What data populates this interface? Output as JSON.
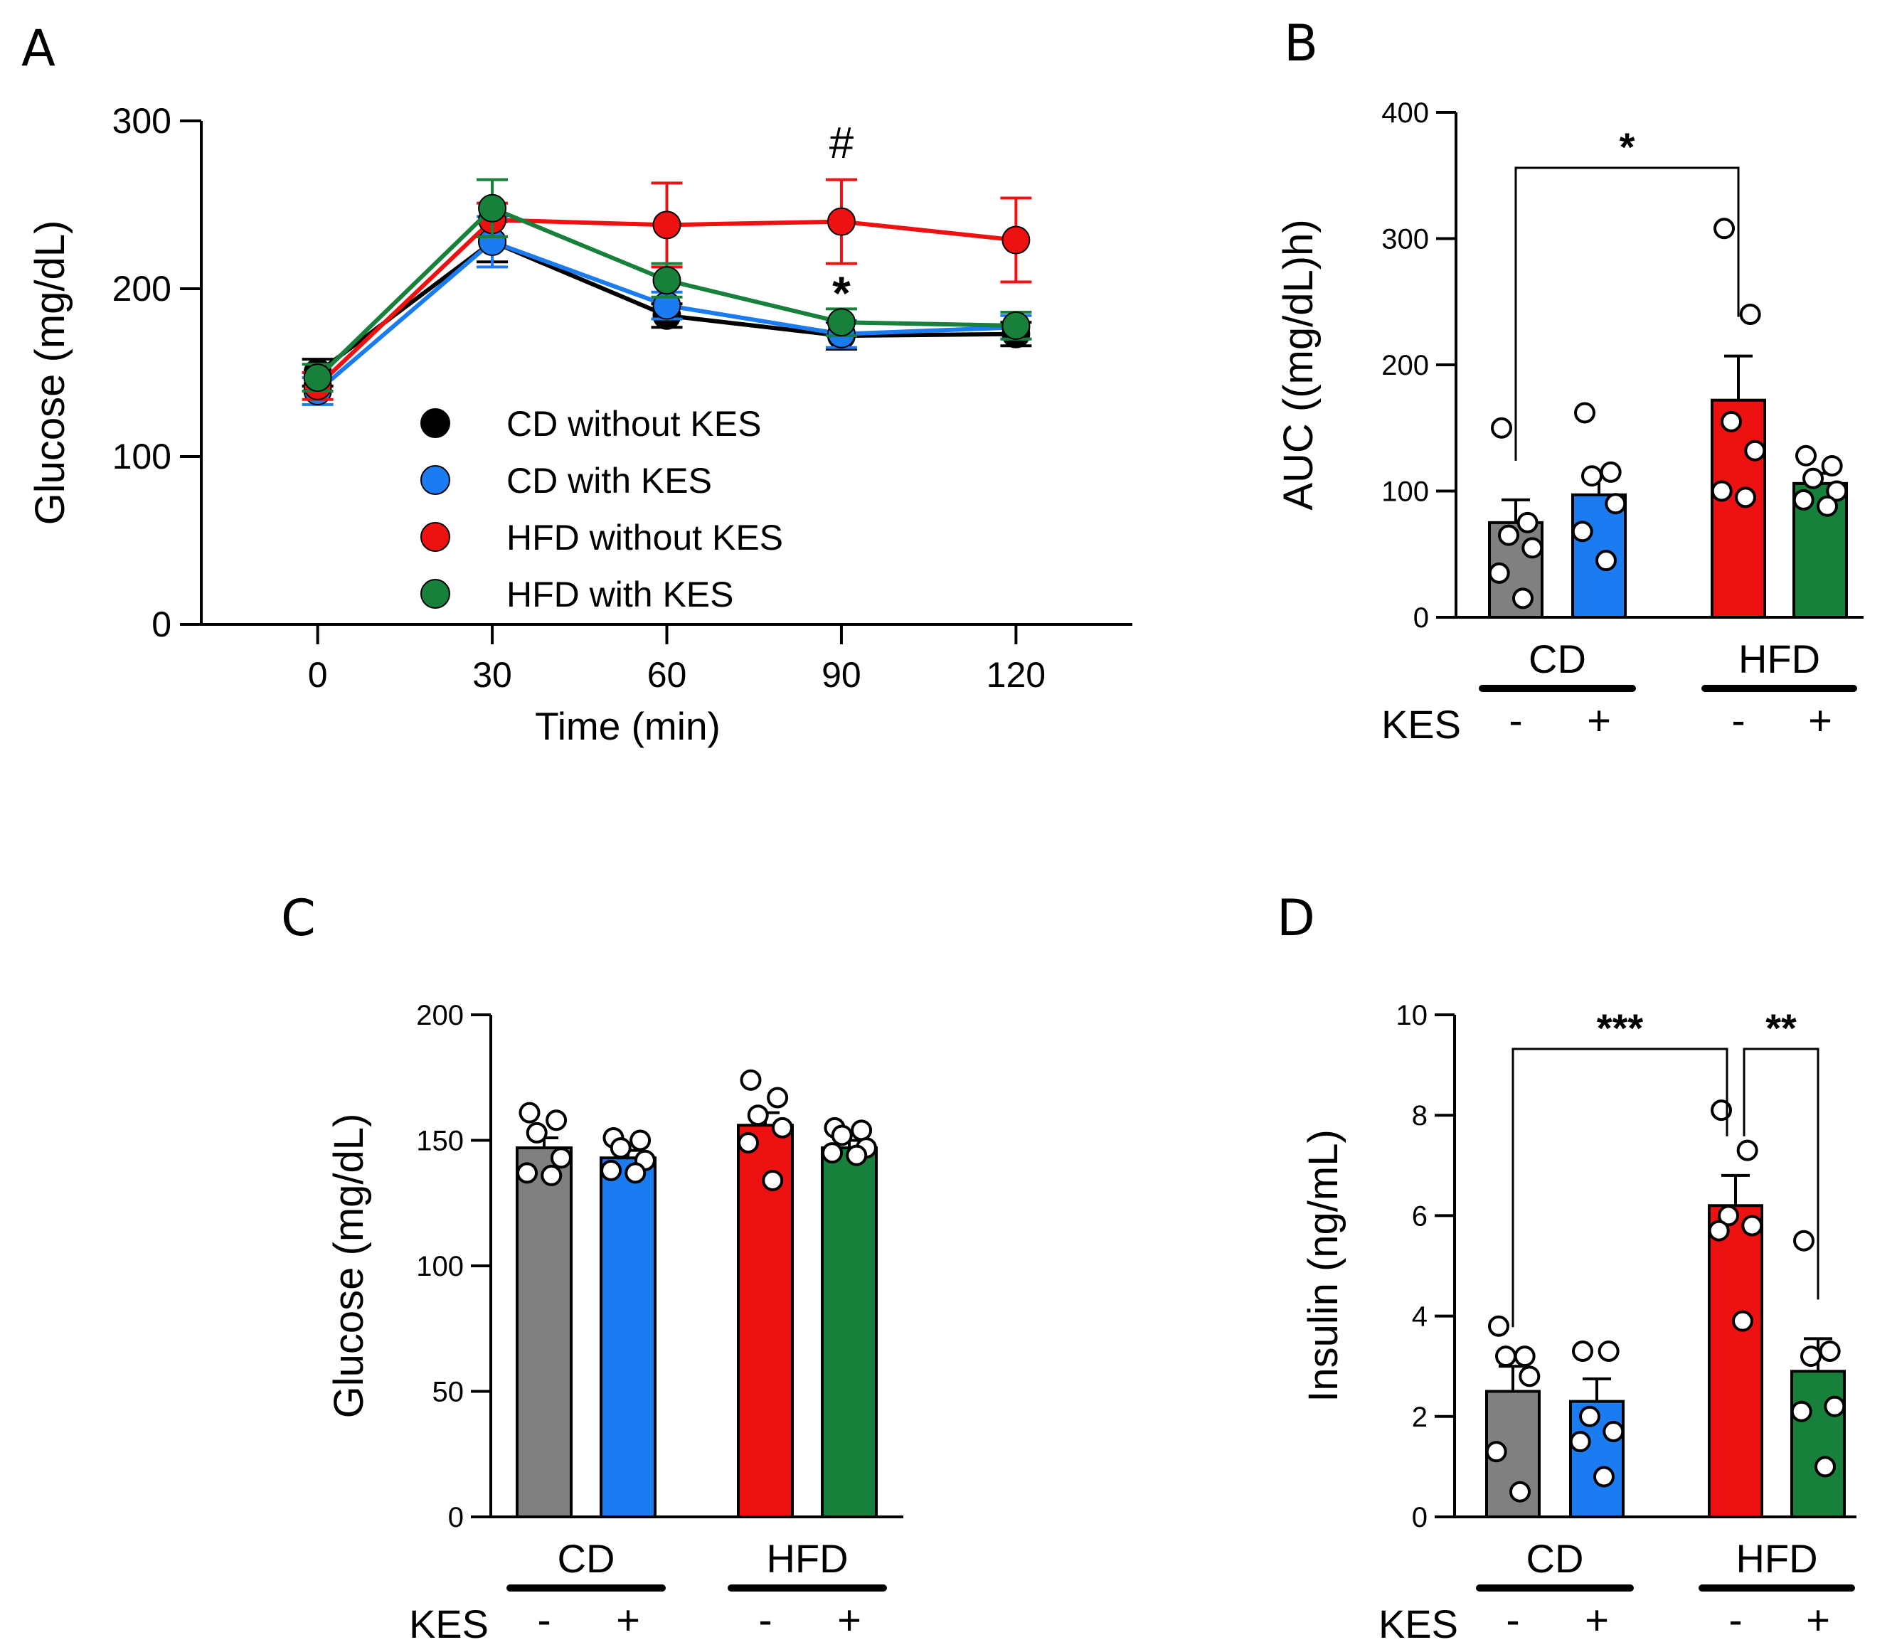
{
  "panels": {
    "A": "A",
    "B": "B",
    "C": "C",
    "D": "D"
  },
  "colors": {
    "CD_without_KES": "#000000",
    "CD_with_KES": "#1a7cf0",
    "HFD_without_KES": "#ee1111",
    "HFD_with_KES": "#17803a",
    "bar_CD_minus": "#808080",
    "bar_CD_plus": "#1a7cf0",
    "bar_HFD_minus": "#ee1111",
    "bar_HFD_plus": "#17803a"
  },
  "chart_data": [
    {
      "id": "A",
      "type": "line",
      "ylabel": "Glucose (mg/dL)",
      "xlabel": "Time (min)",
      "ylim": [
        0,
        300
      ],
      "yticks": [
        0,
        100,
        200,
        300
      ],
      "x": [
        0,
        30,
        60,
        90,
        120
      ],
      "xlim": [
        -20,
        140
      ],
      "series": [
        {
          "name": "CD without KES",
          "color": "#000000",
          "values": [
            150,
            228,
            184,
            172,
            173
          ],
          "err": [
            8,
            12,
            7,
            8,
            7
          ]
        },
        {
          "name": "CD with KES",
          "color": "#1a7cf0",
          "values": [
            139,
            228,
            190,
            173,
            177
          ],
          "err": [
            8,
            15,
            8,
            8,
            7
          ]
        },
        {
          "name": "HFD without KES",
          "color": "#ee1111",
          "values": [
            142,
            241,
            238,
            240,
            229
          ],
          "err": [
            8,
            10,
            25,
            25,
            25
          ]
        },
        {
          "name": "HFD with KES",
          "color": "#17803a",
          "values": [
            147,
            248,
            205,
            180,
            178
          ],
          "err": [
            8,
            17,
            10,
            8,
            8
          ]
        }
      ],
      "annotations": [
        {
          "text": "#",
          "x": 90
        },
        {
          "text": "*",
          "x": 90
        }
      ]
    },
    {
      "id": "B",
      "type": "bar",
      "ylabel": "AUC ((mg/dL)h)",
      "ylim": [
        0,
        400
      ],
      "yticks": [
        0,
        100,
        200,
        300,
        400
      ],
      "groups": [
        "CD",
        "HFD"
      ],
      "factor": "KES",
      "signs": [
        "-",
        "+",
        "-",
        "+"
      ],
      "bars": [
        {
          "label": "CD -",
          "value": 75,
          "err": 18,
          "points": [
            150,
            75,
            65,
            55,
            35,
            15
          ]
        },
        {
          "label": "CD +",
          "value": 97,
          "err": 17,
          "points": [
            162,
            115,
            112,
            90,
            68,
            45
          ]
        },
        {
          "label": "HFD -",
          "value": 172,
          "err": 35,
          "points": [
            308,
            240,
            155,
            132,
            100,
            95
          ]
        },
        {
          "label": "HFD +",
          "value": 106,
          "err": 8,
          "points": [
            128,
            120,
            110,
            100,
            93,
            88
          ]
        }
      ],
      "significance": [
        {
          "text": "*",
          "from": 0,
          "to": 2
        }
      ]
    },
    {
      "id": "C",
      "type": "bar",
      "ylabel": "Glucose (mg/dL)",
      "ylim": [
        0,
        200
      ],
      "yticks": [
        0,
        50,
        100,
        150,
        200
      ],
      "groups": [
        "CD",
        "HFD"
      ],
      "factor": "KES",
      "signs": [
        "-",
        "+",
        "-",
        "+"
      ],
      "bars": [
        {
          "label": "CD -",
          "value": 147,
          "err": 4,
          "points": [
            161,
            158,
            153,
            143,
            137,
            136
          ]
        },
        {
          "label": "CD +",
          "value": 143,
          "err": 3,
          "points": [
            151,
            150,
            147,
            142,
            138,
            137
          ]
        },
        {
          "label": "HFD -",
          "value": 156,
          "err": 5,
          "points": [
            174,
            167,
            160,
            155,
            149,
            134
          ]
        },
        {
          "label": "HFD +",
          "value": 147,
          "err": 3,
          "points": [
            155,
            154,
            152,
            147,
            145,
            144
          ]
        }
      ],
      "significance": []
    },
    {
      "id": "D",
      "type": "bar",
      "ylabel": "Insulin (ng/mL)",
      "ylim": [
        0,
        10
      ],
      "yticks": [
        0,
        2,
        4,
        6,
        8,
        10
      ],
      "groups": [
        "CD",
        "HFD"
      ],
      "factor": "KES",
      "signs": [
        "-",
        "+",
        "-",
        "+"
      ],
      "bars": [
        {
          "label": "CD -",
          "value": 2.5,
          "err": 0.5,
          "points": [
            3.8,
            3.2,
            3.2,
            2.8,
            1.3,
            0.5
          ]
        },
        {
          "label": "CD +",
          "value": 2.3,
          "err": 0.45,
          "points": [
            3.3,
            3.3,
            2.0,
            1.7,
            1.5,
            0.8
          ]
        },
        {
          "label": "HFD -",
          "value": 6.2,
          "err": 0.6,
          "points": [
            8.1,
            7.3,
            6.0,
            5.8,
            5.7,
            3.9
          ]
        },
        {
          "label": "HFD +",
          "value": 2.9,
          "err": 0.65,
          "points": [
            5.5,
            3.3,
            3.2,
            2.2,
            2.1,
            1.0
          ]
        }
      ],
      "significance": [
        {
          "text": "***",
          "from": 0,
          "to": 2
        },
        {
          "text": "**",
          "from": 2,
          "to": 3
        }
      ]
    }
  ]
}
